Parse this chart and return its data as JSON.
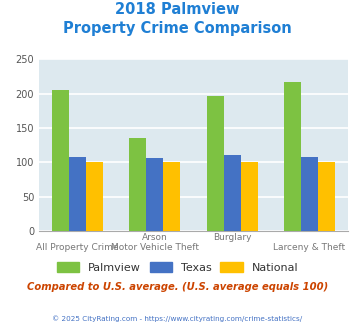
{
  "title_line1": "2018 Palmview",
  "title_line2": "Property Crime Comparison",
  "cat_labels_top": [
    "",
    "Arson",
    "Burglary",
    ""
  ],
  "cat_labels_bot": [
    "All Property Crime",
    "Motor Vehicle Theft",
    "",
    "Larceny & Theft"
  ],
  "series": {
    "Palmview": [
      205,
      135,
      197,
      217
    ],
    "Texas": [
      108,
      106,
      110,
      108
    ],
    "National": [
      100,
      100,
      100,
      100
    ]
  },
  "colors": {
    "Palmview": "#7DC242",
    "Texas": "#4472C4",
    "National": "#FFC000"
  },
  "ylim": [
    0,
    250
  ],
  "yticks": [
    0,
    50,
    100,
    150,
    200,
    250
  ],
  "background_color": "#DDE9EF",
  "title_color": "#1F7FD4",
  "xlabel_color_top": "#888888",
  "xlabel_color_bot": "#888888",
  "footer_text": "Compared to U.S. average. (U.S. average equals 100)",
  "footer_color": "#CC4400",
  "copyright_text": "© 2025 CityRating.com - https://www.cityrating.com/crime-statistics/",
  "copyright_color": "#4472C4",
  "grid_color": "#FFFFFF",
  "bar_width": 0.22
}
